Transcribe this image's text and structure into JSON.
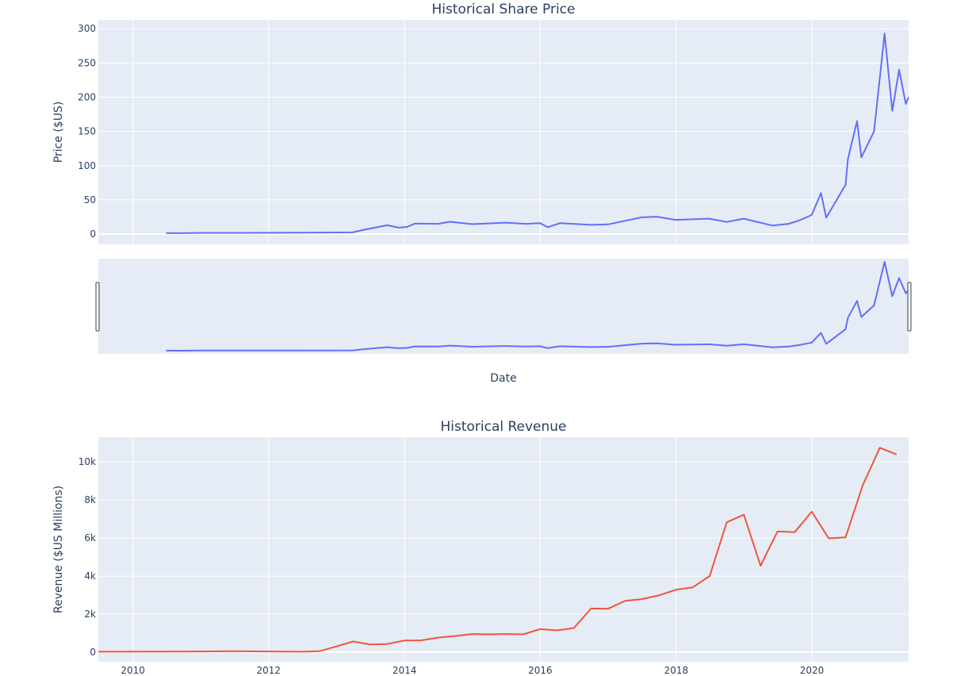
{
  "chart_data": [
    {
      "type": "line",
      "title": "Historical Share Price",
      "xlabel": "Date",
      "ylabel": "Price ($US)",
      "xlim": [
        "2009-06-29",
        "2021-06-04"
      ],
      "ylim": [
        -15,
        313
      ],
      "y_ticks": [
        0,
        50,
        100,
        150,
        200,
        250,
        300
      ],
      "y_tick_labels": [
        "0",
        "50",
        "100",
        "150",
        "200",
        "250",
        "300"
      ],
      "grid": true,
      "range_slider": true,
      "series": [
        {
          "color": "#636efa",
          "x": [
            "2010-06-29",
            "2010-09-01",
            "2010-12-31",
            "2011-06-30",
            "2012-06-29",
            "2013-03-28",
            "2013-05-31",
            "2013-07-15",
            "2013-09-30",
            "2013-11-29",
            "2014-01-15",
            "2014-02-27",
            "2014-06-30",
            "2014-09-02",
            "2014-12-31",
            "2015-06-30",
            "2015-10-15",
            "2015-12-31",
            "2016-02-10",
            "2016-04-15",
            "2016-09-30",
            "2016-12-31",
            "2017-06-30",
            "2017-09-18",
            "2017-12-29",
            "2018-06-29",
            "2018-09-28",
            "2018-12-31",
            "2019-06-03",
            "2019-08-30",
            "2019-10-25",
            "2019-12-31",
            "2020-02-19",
            "2020-03-18",
            "2020-06-30",
            "2020-07-13",
            "2020-08-31",
            "2020-09-23",
            "2020-11-30",
            "2021-01-26",
            "2021-03-08",
            "2021-04-14",
            "2021-05-20",
            "2021-06-04"
          ],
          "y": [
            1.6,
            1.4,
            1.8,
            1.8,
            2.1,
            2.5,
            6.5,
            8.9,
            12.9,
            9.5,
            10.5,
            15.5,
            15.0,
            18.0,
            14.5,
            16.8,
            15.0,
            16.0,
            10.0,
            16.0,
            13.5,
            14.2,
            24.5,
            25.5,
            20.8,
            22.5,
            17.8,
            22.5,
            12.5,
            15.0,
            20.0,
            28.0,
            60.0,
            24.0,
            72.0,
            110.0,
            165.0,
            112.0,
            150.0,
            293.0,
            180.0,
            240.0,
            190.0,
            200.0
          ]
        }
      ]
    },
    {
      "type": "line",
      "title": "Historical Revenue",
      "xlabel": "",
      "ylabel": "Revenue ($US Millions)",
      "xlim": [
        "2009-06-29",
        "2021-06-04"
      ],
      "ylim": [
        -500,
        11300
      ],
      "y_ticks": [
        0,
        2000,
        4000,
        6000,
        8000,
        10000
      ],
      "y_tick_labels": [
        "0",
        "2k",
        "4k",
        "6k",
        "8k",
        "10k"
      ],
      "x_ticks": [
        "2010-01-01",
        "2012-01-01",
        "2014-01-01",
        "2016-01-01",
        "2018-01-01",
        "2020-01-01"
      ],
      "x_tick_labels": [
        "2010",
        "2012",
        "2014",
        "2016",
        "2018",
        "2020"
      ],
      "grid": true,
      "series": [
        {
          "color": "#ef553b",
          "x": [
            "2009-06-30",
            "2010-06-30",
            "2010-12-31",
            "2011-06-30",
            "2011-12-31",
            "2012-06-30",
            "2012-09-30",
            "2012-12-31",
            "2013-03-31",
            "2013-06-30",
            "2013-09-30",
            "2013-12-31",
            "2014-03-31",
            "2014-06-30",
            "2014-09-30",
            "2014-12-31",
            "2015-03-31",
            "2015-06-30",
            "2015-09-30",
            "2015-12-31",
            "2016-03-31",
            "2016-06-30",
            "2016-09-30",
            "2016-12-31",
            "2017-03-31",
            "2017-06-30",
            "2017-09-30",
            "2017-12-31",
            "2018-03-31",
            "2018-06-30",
            "2018-09-30",
            "2018-12-31",
            "2019-03-31",
            "2019-06-30",
            "2019-09-30",
            "2019-12-31",
            "2020-03-31",
            "2020-06-30",
            "2020-09-30",
            "2020-12-31",
            "2021-03-31"
          ],
          "y": [
            26,
            28,
            36,
            49,
            39,
            27,
            50,
            306,
            562,
            405,
            431,
            615,
            621,
            769,
            852,
            957,
            940,
            955,
            937,
            1214,
            1147,
            1270,
            2298,
            2285,
            2696,
            2790,
            2985,
            3288,
            3409,
            4002,
            6824,
            7226,
            4541,
            6350,
            6303,
            7384,
            5985,
            6036,
            8771,
            10744,
            10389
          ]
        }
      ]
    }
  ]
}
